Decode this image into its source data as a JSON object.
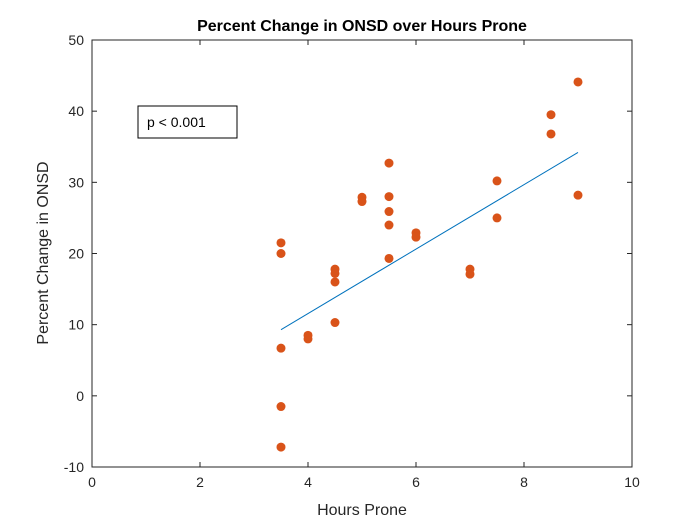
{
  "chart_data": {
    "type": "scatter",
    "title": "Percent Change in ONSD over Hours Prone",
    "xlabel": "Hours Prone",
    "ylabel": "Percent Change in ONSD",
    "xlim": [
      0,
      10
    ],
    "ylim": [
      -10,
      50
    ],
    "xticks": [
      "0",
      "2",
      "4",
      "6",
      "8",
      "10"
    ],
    "yticks": [
      "-10",
      "0",
      "10",
      "20",
      "30",
      "40",
      "50"
    ],
    "grid": false,
    "annotation": "p < 0.001",
    "points": [
      {
        "x": 3.5,
        "y": 21.5
      },
      {
        "x": 3.5,
        "y": 20.0
      },
      {
        "x": 3.5,
        "y": 6.7
      },
      {
        "x": 3.5,
        "y": -1.5
      },
      {
        "x": 3.5,
        "y": -7.2
      },
      {
        "x": 4.0,
        "y": 8.5
      },
      {
        "x": 4.0,
        "y": 8.0
      },
      {
        "x": 4.5,
        "y": 17.8
      },
      {
        "x": 4.5,
        "y": 17.2
      },
      {
        "x": 4.5,
        "y": 16.0
      },
      {
        "x": 4.5,
        "y": 10.3
      },
      {
        "x": 5.0,
        "y": 27.9
      },
      {
        "x": 5.0,
        "y": 27.3
      },
      {
        "x": 5.5,
        "y": 32.7
      },
      {
        "x": 5.5,
        "y": 28.0
      },
      {
        "x": 5.5,
        "y": 25.9
      },
      {
        "x": 5.5,
        "y": 24.0
      },
      {
        "x": 5.5,
        "y": 19.3
      },
      {
        "x": 6.0,
        "y": 22.9
      },
      {
        "x": 6.0,
        "y": 22.3
      },
      {
        "x": 7.0,
        "y": 17.8
      },
      {
        "x": 7.0,
        "y": 17.1
      },
      {
        "x": 7.5,
        "y": 30.2
      },
      {
        "x": 7.5,
        "y": 25.0
      },
      {
        "x": 8.5,
        "y": 39.5
      },
      {
        "x": 8.5,
        "y": 36.8
      },
      {
        "x": 9.0,
        "y": 44.1
      },
      {
        "x": 9.0,
        "y": 28.2
      }
    ],
    "fit_line": {
      "x": [
        3.5,
        9.0
      ],
      "y": [
        9.3,
        34.2
      ]
    },
    "colors": {
      "points": "#D95319",
      "fit_line": "#0072BD",
      "axes": "#262626"
    }
  }
}
